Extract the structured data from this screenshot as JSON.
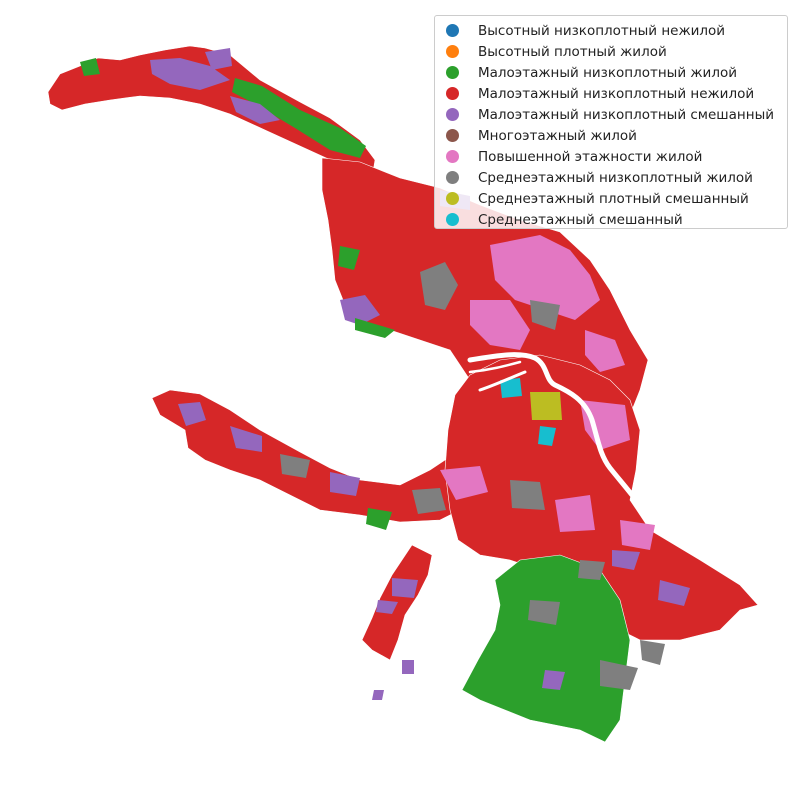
{
  "chart_data": {
    "type": "choropleth",
    "grid": false,
    "legend_position": "top-right",
    "legend": [
      {
        "label": "Высотный низкоплотный нежилой",
        "color": "#1f77b4"
      },
      {
        "label": "Высотный плотный жилой",
        "color": "#ff7f0e"
      },
      {
        "label": "Малоэтажный низкоплотный жилой",
        "color": "#2ca02c"
      },
      {
        "label": "Малоэтажный низкоплотный нежилой",
        "color": "#d62728"
      },
      {
        "label": "Малоэтажный низкоплотный смешанный",
        "color": "#9467bd"
      },
      {
        "label": "Многоэтажный жилой",
        "color": "#8c564b"
      },
      {
        "label": "Повышенной этажности жилой",
        "color": "#e377c2"
      },
      {
        "label": "Среднеэтажный низкоплотный жилой",
        "color": "#7f7f7f"
      },
      {
        "label": "Среднеэтажный плотный смешанный",
        "color": "#bcbd22"
      },
      {
        "label": "Среднеэтажный смешанный",
        "color": "#17becf"
      }
    ]
  },
  "colors": {
    "river": "#ffffff",
    "block_outline": "#ffffff"
  }
}
